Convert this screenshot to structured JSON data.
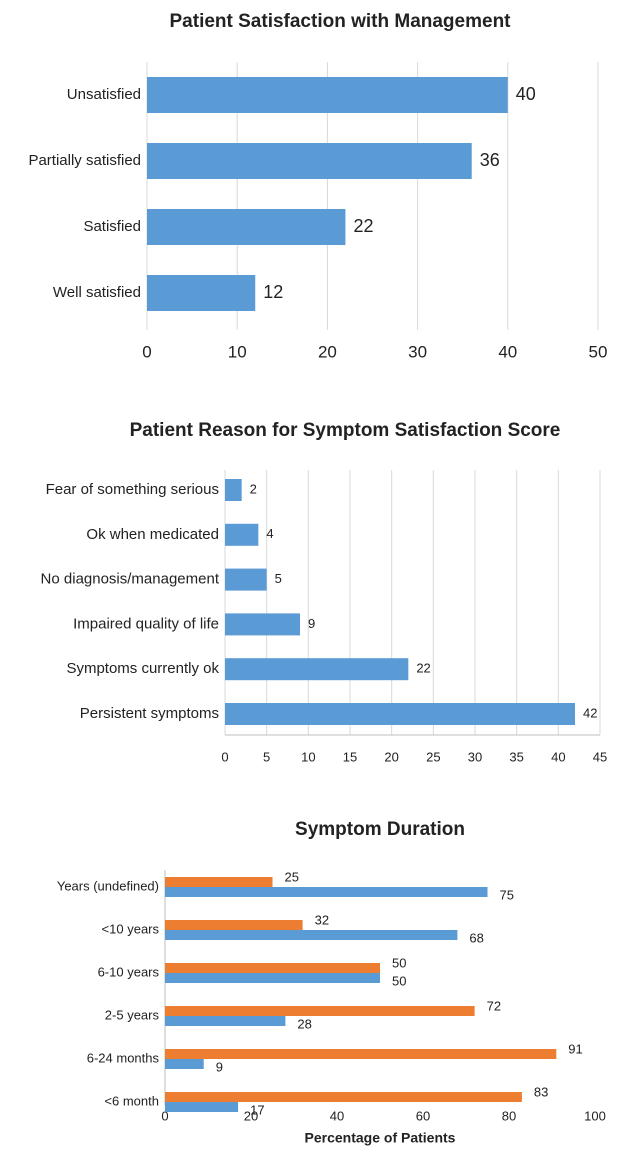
{
  "chart_data": [
    {
      "type": "bar",
      "title": "Patient Satisfaction with Management",
      "categories": [
        "Unsatisfied",
        "Partially satisfied",
        "Satisfied",
        "Well satisfied"
      ],
      "values": [
        40,
        36,
        22,
        12
      ],
      "color": "#5b9bd5",
      "xlim": [
        0,
        50
      ],
      "xticks": [
        0,
        10,
        20,
        30,
        40,
        50
      ],
      "grid": true
    },
    {
      "type": "bar",
      "title": "Patient Reason for Symptom Satisfaction Score",
      "categories": [
        "Fear of something serious",
        "Ok when medicated",
        "No diagnosis/management",
        "Impaired quality of life",
        "Symptoms currently ok",
        "Persistent symptoms"
      ],
      "values": [
        2,
        4,
        5,
        9,
        22,
        42
      ],
      "color": "#5b9bd5",
      "xlim": [
        0,
        45
      ],
      "xticks": [
        0,
        5,
        10,
        15,
        20,
        25,
        30,
        35,
        40,
        45
      ],
      "grid": true
    },
    {
      "type": "bar",
      "title": "Symptom Duration",
      "x_label": "Percentage of Patients",
      "categories": [
        "Years (undefined)",
        "<10 years",
        "6-10 years",
        "2-5 years",
        "6-24 months",
        "<6 month"
      ],
      "series": [
        {
          "color": "#ed7d31",
          "values": [
            25,
            32,
            50,
            72,
            91,
            83
          ]
        },
        {
          "color": "#5b9bd5",
          "values": [
            75,
            68,
            50,
            28,
            9,
            17
          ]
        }
      ],
      "xlim": [
        0,
        100
      ],
      "xticks": [
        0,
        20,
        40,
        60,
        80,
        100
      ],
      "grid": false
    }
  ]
}
